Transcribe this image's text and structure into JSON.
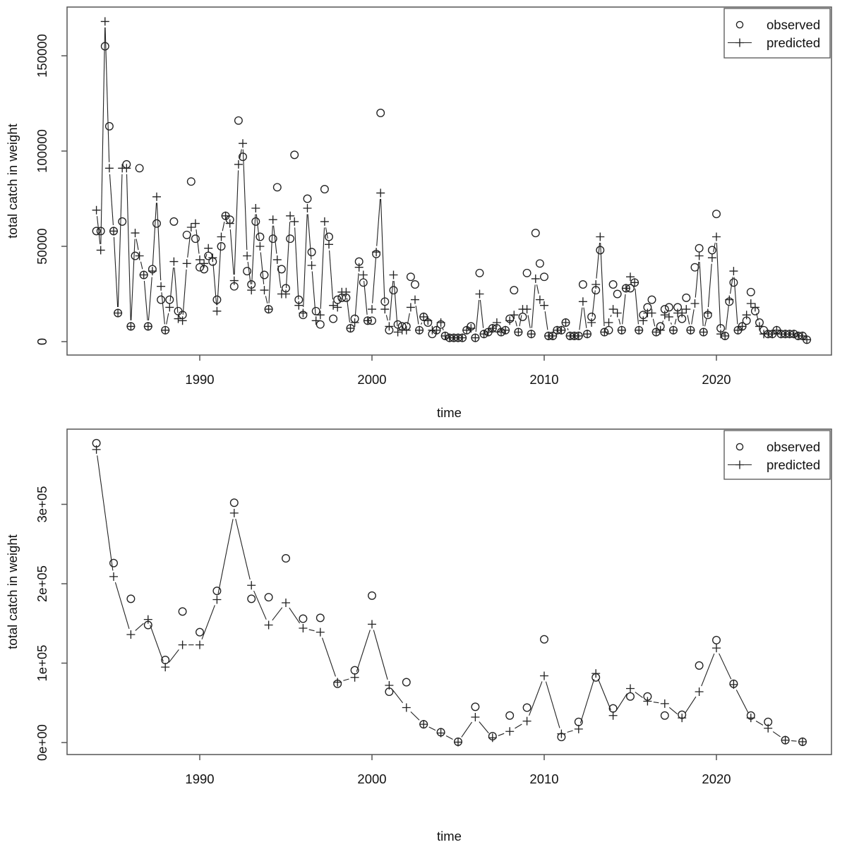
{
  "figure": {
    "background": "#ffffff",
    "series_color": "#222222",
    "frame_color": "#555555",
    "text_color": "#111111"
  },
  "legend": {
    "items": [
      {
        "label": "observed",
        "marker": "circle"
      },
      {
        "label": "predicted",
        "marker": "plus-line"
      }
    ]
  },
  "chart_data": [
    {
      "id": "top",
      "type": "scatter",
      "title": "",
      "xlabel": "time",
      "ylabel": "total catch in weight",
      "legend_position": "topright",
      "grid": false,
      "xlim": [
        1982.3,
        2026.7
      ],
      "ylim": [
        -7000,
        175500
      ],
      "x_ticks": {
        "values": [
          1990,
          2000,
          2010,
          2020
        ],
        "labels": [
          "1990",
          "2000",
          "2010",
          "2020"
        ]
      },
      "y_ticks": {
        "values": [
          0,
          50000,
          100000,
          150000
        ],
        "labels": [
          "0",
          "50000",
          "100000",
          "150000"
        ]
      },
      "x_start": 1984.0,
      "x_step": 0.25,
      "series": [
        {
          "name": "observed",
          "marker": "circle",
          "connect": false,
          "values": [
            58000,
            58000,
            155000,
            113000,
            58000,
            15000,
            63000,
            93000,
            8000,
            45000,
            91000,
            35000,
            8000,
            38000,
            62000,
            22000,
            6000,
            22000,
            63000,
            16000,
            14000,
            56000,
            84000,
            54000,
            39000,
            38000,
            45000,
            42000,
            22000,
            50000,
            66000,
            64000,
            29000,
            116000,
            97000,
            37000,
            30000,
            63000,
            55000,
            35000,
            17000,
            54000,
            81000,
            38000,
            28000,
            54000,
            98000,
            22000,
            14000,
            75000,
            47000,
            16000,
            9000,
            80000,
            55000,
            12000,
            22000,
            23000,
            23000,
            7000,
            12000,
            42000,
            31000,
            11000,
            11000,
            46000,
            120000,
            21000,
            6000,
            27000,
            9000,
            8000,
            8000,
            34000,
            30000,
            6000,
            13000,
            10000,
            4000,
            6000,
            9000,
            3000,
            2000,
            2000,
            2000,
            2000,
            6000,
            8000,
            2000,
            36000,
            4000,
            5000,
            7000,
            7000,
            5000,
            6000,
            12000,
            27000,
            5000,
            13000,
            36000,
            4000,
            57000,
            41000,
            34000,
            3000,
            3000,
            6000,
            6000,
            10000,
            3000,
            3000,
            3000,
            30000,
            4000,
            13000,
            27000,
            48000,
            5000,
            6000,
            30000,
            25000,
            6000,
            28000,
            28000,
            31000,
            6000,
            14000,
            18000,
            22000,
            5000,
            8000,
            17000,
            18000,
            6000,
            18000,
            12000,
            23000,
            6000,
            39000,
            49000,
            5000,
            14000,
            48000,
            67000,
            7000,
            3000,
            21000,
            31000,
            6000,
            8000,
            11000,
            26000,
            16000,
            10000,
            6000,
            4000,
            4000,
            6000,
            4000,
            4000,
            4000,
            4000,
            3000,
            3000,
            1000
          ]
        },
        {
          "name": "predicted",
          "marker": "plus",
          "connect": true,
          "values": [
            69000,
            48000,
            168000,
            91000,
            58000,
            15000,
            91000,
            91000,
            8000,
            57000,
            45000,
            35000,
            8000,
            37000,
            76000,
            29000,
            6000,
            18000,
            42000,
            12000,
            11000,
            41000,
            60000,
            62000,
            43000,
            41000,
            49000,
            44000,
            16000,
            55000,
            66000,
            62000,
            32000,
            93000,
            104000,
            45000,
            27000,
            70000,
            50000,
            27000,
            17000,
            64000,
            43000,
            25000,
            25000,
            66000,
            63000,
            19000,
            15000,
            70000,
            40000,
            11000,
            14000,
            63000,
            51000,
            19000,
            18000,
            26000,
            26000,
            7000,
            10000,
            39000,
            35000,
            11000,
            17000,
            47000,
            78000,
            17000,
            8000,
            35000,
            5000,
            6000,
            6000,
            18000,
            22000,
            6000,
            13000,
            11000,
            6000,
            6000,
            10000,
            3000,
            2000,
            2000,
            2000,
            2000,
            6000,
            7000,
            2000,
            25000,
            4000,
            5000,
            7000,
            10000,
            5000,
            6000,
            11000,
            14000,
            5000,
            17000,
            17000,
            4000,
            33000,
            22000,
            19000,
            3000,
            3000,
            6000,
            6000,
            10000,
            3000,
            3000,
            3000,
            21000,
            4000,
            10000,
            30000,
            55000,
            5000,
            10000,
            17000,
            15000,
            6000,
            28000,
            34000,
            31000,
            6000,
            11000,
            15000,
            15000,
            5000,
            6000,
            14000,
            13000,
            6000,
            15000,
            15000,
            17000,
            6000,
            20000,
            45000,
            5000,
            15000,
            44000,
            55000,
            4000,
            3000,
            22000,
            37000,
            6000,
            8000,
            14000,
            20000,
            18000,
            8000,
            4000,
            4000,
            4000,
            6000,
            4000,
            4000,
            4000,
            4000,
            3000,
            3000,
            1000
          ]
        }
      ]
    },
    {
      "id": "bottom",
      "type": "scatter",
      "title": "",
      "xlabel": "time",
      "ylabel": "total catch in weight",
      "legend_position": "topright",
      "grid": false,
      "xlim": [
        1982.3,
        2026.7
      ],
      "ylim": [
        -15000,
        392000
      ],
      "x_ticks": {
        "values": [
          1990,
          2000,
          2010,
          2020
        ],
        "labels": [
          "1990",
          "2000",
          "2010",
          "2020"
        ]
      },
      "y_ticks": {
        "values": [
          0,
          100000,
          200000,
          300000
        ],
        "labels": [
          "0e+00",
          "1e+05",
          "2e+05",
          "3e+05"
        ]
      },
      "x": [
        1984,
        1985,
        1986,
        1987,
        1988,
        1989,
        1990,
        1991,
        1992,
        1993,
        1994,
        1995,
        1996,
        1997,
        1998,
        1999,
        2000,
        2001,
        2002,
        2003,
        2004,
        2005,
        2006,
        2007,
        2008,
        2009,
        2010,
        2011,
        2012,
        2013,
        2014,
        2015,
        2016,
        2017,
        2018,
        2019,
        2020,
        2021,
        2022,
        2023,
        2024,
        2025
      ],
      "series": [
        {
          "name": "observed",
          "marker": "circle",
          "connect": false,
          "values": [
            377000,
            226000,
            181000,
            148000,
            104000,
            165000,
            139000,
            191000,
            302000,
            181000,
            183000,
            232000,
            156000,
            157000,
            74000,
            91000,
            185000,
            64000,
            76000,
            23000,
            13000,
            1000,
            45000,
            8000,
            34000,
            44000,
            130000,
            7000,
            26000,
            82000,
            43000,
            58000,
            58000,
            34000,
            35000,
            97000,
            129000,
            74000,
            34000,
            26000,
            3000,
            1000
          ]
        },
        {
          "name": "predicted",
          "marker": "plus",
          "connect": true,
          "values": [
            369000,
            209000,
            136000,
            155000,
            95000,
            123000,
            123000,
            180000,
            289000,
            198000,
            148000,
            176000,
            144000,
            139000,
            76000,
            82000,
            149000,
            72000,
            44000,
            23000,
            12000,
            500,
            32000,
            6000,
            14000,
            27000,
            84000,
            11000,
            17000,
            87000,
            34000,
            68000,
            52000,
            49000,
            31000,
            64000,
            119000,
            73000,
            31000,
            18000,
            3000,
            1000
          ]
        }
      ]
    }
  ]
}
